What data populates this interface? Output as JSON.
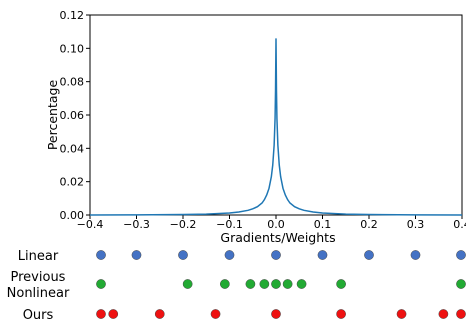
{
  "chart_data": {
    "type": "line",
    "xlabel": "Gradients/Weights",
    "ylabel": "Percentage",
    "xlim": [
      -0.4,
      0.4
    ],
    "ylim": [
      0,
      0.12
    ],
    "x_ticks": [
      -0.4,
      -0.3,
      -0.2,
      -0.1,
      0.0,
      0.1,
      0.2,
      0.3,
      0.4
    ],
    "x_tick_labels": [
      "−0.4",
      "−0.3",
      "−0.2",
      "−0.1",
      "0.0",
      "0.1",
      "0.2",
      "0.3",
      "0.4"
    ],
    "y_ticks": [
      0.0,
      0.02,
      0.04,
      0.06,
      0.08,
      0.1,
      0.12
    ],
    "y_tick_labels": [
      "0.00",
      "0.02",
      "0.04",
      "0.06",
      "0.08",
      "0.10",
      "0.12"
    ],
    "grid": false,
    "series": [
      {
        "color": "#1f77b4",
        "x": [
          -0.4,
          -0.3,
          -0.2,
          -0.15,
          -0.1,
          -0.08,
          -0.06,
          -0.05,
          -0.04,
          -0.03,
          -0.025,
          -0.02,
          -0.015,
          -0.01,
          -0.007,
          -0.004,
          -0.002,
          -0.001,
          0.0,
          0.001,
          0.002,
          0.004,
          0.007,
          0.01,
          0.015,
          0.02,
          0.025,
          0.03,
          0.04,
          0.05,
          0.06,
          0.08,
          0.1,
          0.15,
          0.2,
          0.3,
          0.4
        ],
        "y": [
          0.0,
          0.0001,
          0.0003,
          0.0005,
          0.0012,
          0.0018,
          0.0028,
          0.0037,
          0.005,
          0.0072,
          0.0092,
          0.012,
          0.016,
          0.023,
          0.03,
          0.042,
          0.058,
          0.075,
          0.106,
          0.075,
          0.058,
          0.042,
          0.03,
          0.023,
          0.016,
          0.012,
          0.0092,
          0.0072,
          0.005,
          0.0037,
          0.0028,
          0.0018,
          0.0012,
          0.0005,
          0.0003,
          0.0001,
          0.0
        ]
      }
    ],
    "quantization_rows": [
      {
        "label_lines": [
          "Linear"
        ],
        "color": "#4472c4",
        "levels": [
          -0.4,
          -0.3,
          -0.2,
          -0.1,
          0.0,
          0.1,
          0.2,
          0.3,
          0.4
        ]
      },
      {
        "label_lines": [
          "Previous",
          "Nonlinear"
        ],
        "color": "#22aa33",
        "levels": [
          -0.4,
          -0.19,
          -0.11,
          -0.055,
          -0.025,
          0.0,
          0.025,
          0.055,
          0.14,
          0.4
        ]
      },
      {
        "label_lines": [
          "Ours"
        ],
        "color": "#ee1111",
        "levels": [
          -0.4,
          -0.35,
          -0.25,
          -0.13,
          0.0,
          0.14,
          0.27,
          0.36,
          0.4
        ]
      }
    ]
  }
}
